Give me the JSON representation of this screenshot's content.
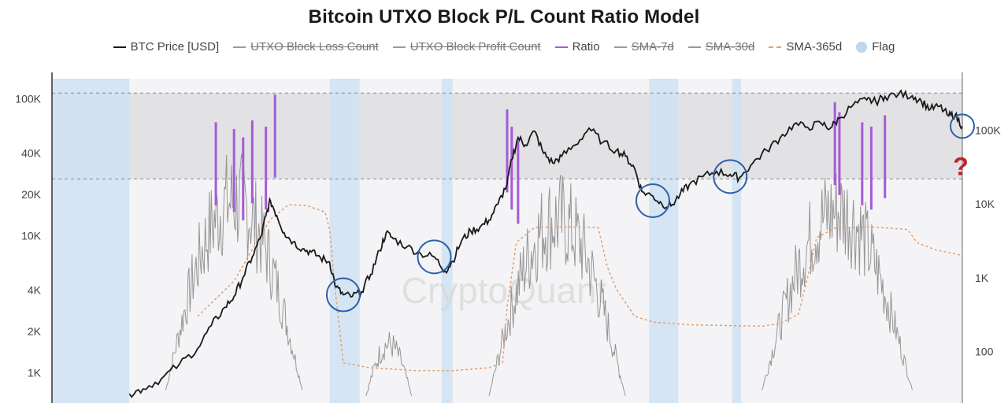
{
  "chart_data": {
    "type": "line",
    "title": "Bitcoin UTXO Block P/L Count Ratio Model",
    "legend": [
      {
        "name": "BTC Price [USD]",
        "color": "#1a1a1a",
        "style": "line",
        "hidden": false
      },
      {
        "name": "UTXO Block Loss Count",
        "color": "#9a9a9a",
        "style": "line",
        "hidden": true
      },
      {
        "name": "UTXO Block Profit Count",
        "color": "#9a9a9a",
        "style": "line",
        "hidden": true
      },
      {
        "name": "Ratio",
        "color": "#a55ad6",
        "style": "line",
        "hidden": false
      },
      {
        "name": "SMA-7d",
        "color": "#9a9a9a",
        "style": "line",
        "hidden": true
      },
      {
        "name": "SMA-30d",
        "color": "#9a9a9a",
        "style": "line",
        "hidden": true
      },
      {
        "name": "SMA-365d",
        "color": "#e0a070",
        "style": "dashed",
        "hidden": false
      },
      {
        "name": "Flag",
        "color": "#bcd8ef",
        "style": "dot",
        "hidden": false
      }
    ],
    "y_left_ticks": [
      "100K",
      "40K",
      "20K",
      "10K",
      "4K",
      "2K",
      "1K"
    ],
    "y_left_tick_values": [
      100000,
      40000,
      20000,
      10000,
      4000,
      2000,
      1000
    ],
    "y_right_ticks": [
      "100K",
      "10K",
      "1K",
      "100"
    ],
    "y_right_tick_values": [
      100000,
      10000,
      1000,
      100
    ],
    "y_scale": "log",
    "x_range": [
      0,
      1
    ],
    "flag_periods": [
      [
        0.0,
        0.085
      ],
      [
        0.305,
        0.338
      ],
      [
        0.428,
        0.44
      ],
      [
        0.656,
        0.688
      ],
      [
        0.747,
        0.757
      ]
    ],
    "shaded_band_left_values": [
      26000,
      110000
    ],
    "btc_price": [
      [
        0.085,
        700
      ],
      [
        0.1,
        760
      ],
      [
        0.12,
        900
      ],
      [
        0.14,
        1150
      ],
      [
        0.16,
        1500
      ],
      [
        0.175,
        2200
      ],
      [
        0.19,
        3000
      ],
      [
        0.2,
        3600
      ],
      [
        0.21,
        5000
      ],
      [
        0.22,
        7000
      ],
      [
        0.23,
        10000
      ],
      [
        0.235,
        14000
      ],
      [
        0.24,
        18000
      ],
      [
        0.247,
        14000
      ],
      [
        0.255,
        10500
      ],
      [
        0.265,
        9000
      ],
      [
        0.275,
        8000
      ],
      [
        0.285,
        7600
      ],
      [
        0.295,
        6900
      ],
      [
        0.305,
        6400
      ],
      [
        0.312,
        4200
      ],
      [
        0.32,
        3700
      ],
      [
        0.33,
        3600
      ],
      [
        0.34,
        3900
      ],
      [
        0.35,
        5200
      ],
      [
        0.36,
        7800
      ],
      [
        0.367,
        10500
      ],
      [
        0.375,
        9500
      ],
      [
        0.39,
        8300
      ],
      [
        0.405,
        7400
      ],
      [
        0.42,
        7000
      ],
      [
        0.432,
        5500
      ],
      [
        0.44,
        6500
      ],
      [
        0.45,
        9200
      ],
      [
        0.46,
        10800
      ],
      [
        0.47,
        11500
      ],
      [
        0.48,
        13000
      ],
      [
        0.49,
        17000
      ],
      [
        0.5,
        24000
      ],
      [
        0.505,
        36000
      ],
      [
        0.512,
        52000
      ],
      [
        0.52,
        46000
      ],
      [
        0.53,
        58000
      ],
      [
        0.54,
        40000
      ],
      [
        0.55,
        34000
      ],
      [
        0.56,
        38000
      ],
      [
        0.575,
        46000
      ],
      [
        0.59,
        61000
      ],
      [
        0.605,
        48000
      ],
      [
        0.62,
        42000
      ],
      [
        0.63,
        38000
      ],
      [
        0.64,
        31000
      ],
      [
        0.648,
        21000
      ],
      [
        0.66,
        19500
      ],
      [
        0.67,
        17000
      ],
      [
        0.68,
        16500
      ],
      [
        0.69,
        20000
      ],
      [
        0.7,
        23500
      ],
      [
        0.715,
        27000
      ],
      [
        0.73,
        29500
      ],
      [
        0.745,
        28000
      ],
      [
        0.755,
        26500
      ],
      [
        0.77,
        34000
      ],
      [
        0.785,
        42000
      ],
      [
        0.8,
        52000
      ],
      [
        0.815,
        65000
      ],
      [
        0.83,
        62000
      ],
      [
        0.845,
        66000
      ],
      [
        0.855,
        61000
      ],
      [
        0.865,
        72000
      ],
      [
        0.88,
        90000
      ],
      [
        0.895,
        98000
      ],
      [
        0.905,
        95000
      ],
      [
        0.915,
        104000
      ],
      [
        0.93,
        108000
      ],
      [
        0.945,
        105000
      ],
      [
        0.955,
        96000
      ],
      [
        0.965,
        84000
      ],
      [
        0.975,
        88000
      ],
      [
        0.985,
        75000
      ],
      [
        0.992,
        76000
      ],
      [
        1.0,
        63000
      ]
    ],
    "sma365": [
      [
        0.16,
        300
      ],
      [
        0.2,
        900
      ],
      [
        0.22,
        2400
      ],
      [
        0.24,
        6200
      ],
      [
        0.26,
        9800
      ],
      [
        0.28,
        9500
      ],
      [
        0.3,
        7800
      ],
      [
        0.305,
        4500
      ],
      [
        0.31,
        900
      ],
      [
        0.32,
        70
      ],
      [
        0.35,
        60
      ],
      [
        0.4,
        55
      ],
      [
        0.44,
        55
      ],
      [
        0.48,
        60
      ],
      [
        0.495,
        70
      ],
      [
        0.5,
        400
      ],
      [
        0.51,
        3000
      ],
      [
        0.53,
        4800
      ],
      [
        0.56,
        4900
      ],
      [
        0.6,
        4800
      ],
      [
        0.6,
        4800
      ],
      [
        0.61,
        1400
      ],
      [
        0.62,
        700
      ],
      [
        0.64,
        300
      ],
      [
        0.66,
        250
      ],
      [
        0.7,
        230
      ],
      [
        0.78,
        220
      ],
      [
        0.8,
        240
      ],
      [
        0.82,
        320
      ],
      [
        0.83,
        1000
      ],
      [
        0.84,
        3500
      ],
      [
        0.86,
        4700
      ],
      [
        0.9,
        4900
      ],
      [
        0.94,
        4500
      ],
      [
        0.95,
        3000
      ],
      [
        0.97,
        2400
      ],
      [
        1.0,
        2000
      ]
    ],
    "ratio_peaks": [
      [
        0.18,
        16000
      ],
      [
        0.2,
        13000
      ],
      [
        0.21,
        10000
      ],
      [
        0.22,
        17000
      ],
      [
        0.235,
        14000
      ],
      [
        0.245,
        38000
      ],
      [
        0.5,
        24000
      ],
      [
        0.505,
        14000
      ],
      [
        0.512,
        9000
      ],
      [
        0.86,
        30000
      ],
      [
        0.865,
        22000
      ],
      [
        0.89,
        16000
      ],
      [
        0.9,
        14000
      ],
      [
        0.915,
        20000
      ]
    ],
    "circles": [
      [
        0.32,
        3700
      ],
      [
        0.42,
        7000
      ],
      [
        0.66,
        18000
      ],
      [
        0.745,
        27000
      ],
      [
        1.0,
        63000
      ]
    ]
  },
  "watermark": "CryptoQuant",
  "annotation": "?"
}
